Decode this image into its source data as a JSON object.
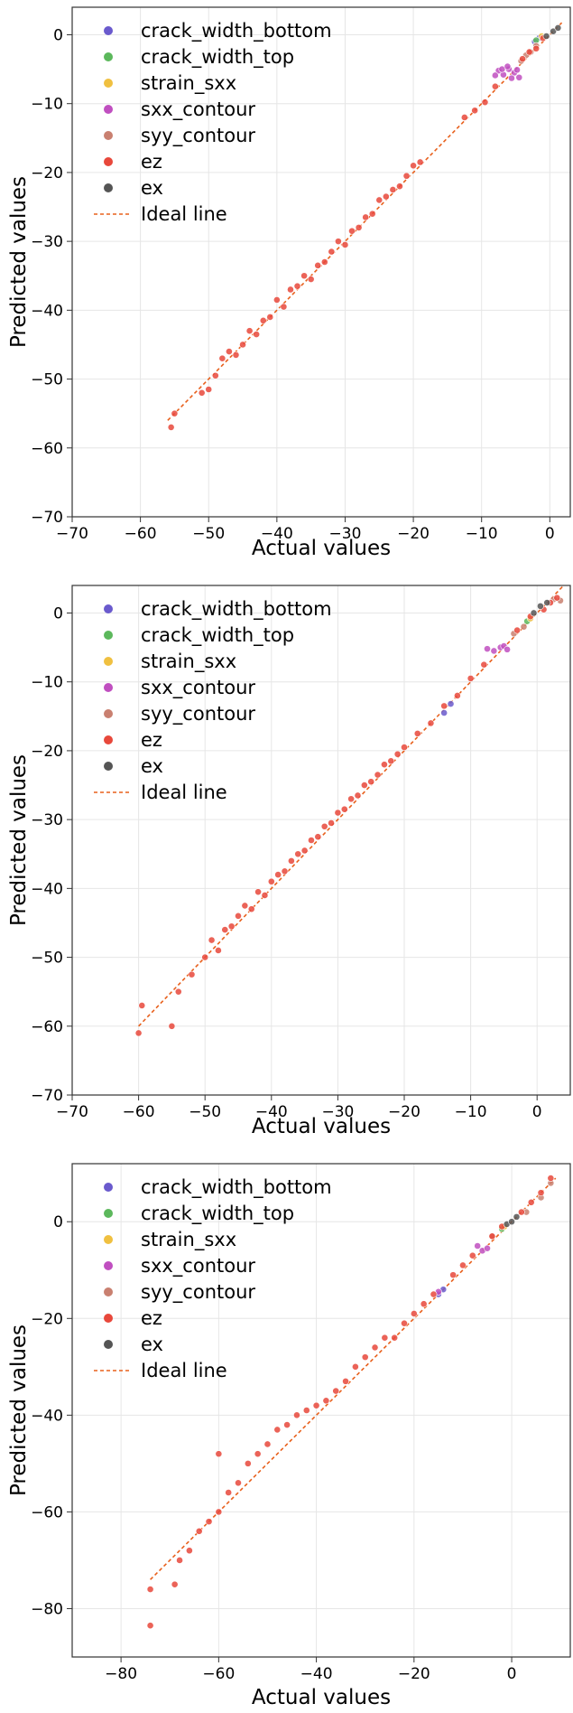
{
  "chart_data": [
    {
      "type": "scatter",
      "xlabel": "Actual values",
      "ylabel": "Predicted values",
      "xlim": [
        -70,
        3
      ],
      "ylim": [
        -70,
        4
      ],
      "xticks": [
        -70,
        -60,
        -50,
        -40,
        -30,
        -20,
        -10,
        0
      ],
      "yticks": [
        -70,
        -60,
        -50,
        -40,
        -30,
        -20,
        -10,
        0
      ],
      "grid": true,
      "legend_position": "upper-left",
      "legend": [
        "crack_width_bottom",
        "crack_width_top",
        "strain_sxx",
        "sxx_contour",
        "syy_contour",
        "ez",
        "ex",
        "Ideal line"
      ],
      "ideal_line": {
        "name": "Ideal line",
        "x": [
          -56,
          2
        ],
        "y": [
          -56,
          2
        ]
      },
      "series": [
        {
          "name": "crack_width_bottom",
          "color": "#6a5acd",
          "points": [
            [
              -1.5,
              -0.4
            ],
            [
              -2.2,
              -1.0
            ]
          ]
        },
        {
          "name": "crack_width_top",
          "color": "#5cb85c",
          "points": [
            [
              -2.0,
              -0.8
            ]
          ]
        },
        {
          "name": "strain_sxx",
          "color": "#f0c040",
          "points": [
            [
              -1.2,
              -0.2
            ]
          ]
        },
        {
          "name": "sxx_contour",
          "color": "#c04fc0",
          "points": [
            [
              -7.5,
              -5.2
            ],
            [
              -6.8,
              -5.8
            ],
            [
              -6.0,
              -5.0
            ],
            [
              -5.2,
              -5.5
            ],
            [
              -4.5,
              -6.2
            ],
            [
              -7.0,
              -5.0
            ],
            [
              -6.2,
              -4.6
            ],
            [
              -5.6,
              -6.3
            ],
            [
              -4.8,
              -5.1
            ],
            [
              -8.0,
              -5.9
            ]
          ]
        },
        {
          "name": "syy_contour",
          "color": "#c98070",
          "points": [
            [
              -3.5,
              -3.0
            ],
            [
              -2.8,
              -2.5
            ],
            [
              -2.0,
              -1.6
            ],
            [
              -4.2,
              -3.8
            ]
          ]
        },
        {
          "name": "ez",
          "color": "#e8483b",
          "points": [
            [
              -55.5,
              -57.0
            ],
            [
              -55.0,
              -55.0
            ],
            [
              -51.0,
              -52.0
            ],
            [
              -50.0,
              -51.5
            ],
            [
              -49.0,
              -49.5
            ],
            [
              -48.0,
              -47.0
            ],
            [
              -47.0,
              -46.0
            ],
            [
              -46.0,
              -46.5
            ],
            [
              -45.0,
              -45.0
            ],
            [
              -44.0,
              -43.0
            ],
            [
              -43.0,
              -43.5
            ],
            [
              -42.0,
              -41.5
            ],
            [
              -41.0,
              -41.0
            ],
            [
              -40.0,
              -38.5
            ],
            [
              -39.0,
              -39.5
            ],
            [
              -38.0,
              -37.0
            ],
            [
              -37.0,
              -36.5
            ],
            [
              -36.0,
              -35.0
            ],
            [
              -35.0,
              -35.5
            ],
            [
              -34.0,
              -33.5
            ],
            [
              -33.0,
              -33.0
            ],
            [
              -32.0,
              -31.5
            ],
            [
              -31.0,
              -30.0
            ],
            [
              -30.0,
              -30.5
            ],
            [
              -29.0,
              -28.5
            ],
            [
              -28.0,
              -28.0
            ],
            [
              -27.0,
              -26.5
            ],
            [
              -26.0,
              -26.0
            ],
            [
              -25.0,
              -24.0
            ],
            [
              -24.0,
              -23.5
            ],
            [
              -23.0,
              -22.5
            ],
            [
              -22.0,
              -22.0
            ],
            [
              -21.0,
              -20.5
            ],
            [
              -20.0,
              -19.0
            ],
            [
              -19.0,
              -18.5
            ],
            [
              -12.5,
              -12.0
            ],
            [
              -11.0,
              -11.0
            ],
            [
              -9.5,
              -9.8
            ],
            [
              -8.0,
              -7.5
            ],
            [
              -4.0,
              -3.5
            ],
            [
              -3.0,
              -2.5
            ],
            [
              -2.0,
              -2.0
            ],
            [
              -1.0,
              -0.5
            ]
          ]
        },
        {
          "name": "ex",
          "color": "#555555",
          "points": [
            [
              -0.5,
              -0.2
            ],
            [
              0.5,
              0.5
            ],
            [
              1.2,
              1.0
            ]
          ]
        }
      ]
    },
    {
      "type": "scatter",
      "xlabel": "Actual values",
      "ylabel": "Predicted values",
      "xlim": [
        -70,
        5
      ],
      "ylim": [
        -70,
        4
      ],
      "xticks": [
        -70,
        -60,
        -50,
        -40,
        -30,
        -20,
        -10,
        0
      ],
      "yticks": [
        -70,
        -60,
        -50,
        -40,
        -30,
        -20,
        -10,
        0
      ],
      "grid": true,
      "legend_position": "upper-left",
      "legend": [
        "crack_width_bottom",
        "crack_width_top",
        "strain_sxx",
        "sxx_contour",
        "syy_contour",
        "ez",
        "ex",
        "Ideal line"
      ],
      "ideal_line": {
        "name": "Ideal line",
        "x": [
          -60,
          4
        ],
        "y": [
          -60,
          4
        ]
      },
      "series": [
        {
          "name": "crack_width_bottom",
          "color": "#6a5acd",
          "points": [
            [
              -14.0,
              -14.5
            ],
            [
              -13.0,
              -13.2
            ]
          ]
        },
        {
          "name": "crack_width_top",
          "color": "#5cb85c",
          "points": [
            [
              -1.5,
              -1.2
            ]
          ]
        },
        {
          "name": "strain_sxx",
          "color": "#f0c040",
          "points": [
            [
              -1.0,
              -0.8
            ]
          ]
        },
        {
          "name": "sxx_contour",
          "color": "#c04fc0",
          "points": [
            [
              -7.5,
              -5.2
            ],
            [
              -6.5,
              -5.5
            ],
            [
              -5.5,
              -5.0
            ],
            [
              -5.0,
              -4.8
            ],
            [
              -4.5,
              -5.3
            ]
          ]
        },
        {
          "name": "syy_contour",
          "color": "#c98070",
          "points": [
            [
              -3.5,
              -3.0
            ],
            [
              -2.0,
              -2.0
            ],
            [
              2.5,
              2.0
            ],
            [
              3.5,
              1.8
            ]
          ]
        },
        {
          "name": "ez",
          "color": "#e8483b",
          "points": [
            [
              -60.0,
              -61.0
            ],
            [
              -59.5,
              -57.0
            ],
            [
              -55.0,
              -60.0
            ],
            [
              -54.0,
              -55.0
            ],
            [
              -52.0,
              -52.5
            ],
            [
              -50.0,
              -50.0
            ],
            [
              -49.0,
              -47.5
            ],
            [
              -48.0,
              -49.0
            ],
            [
              -47.0,
              -46.0
            ],
            [
              -46.0,
              -45.5
            ],
            [
              -45.0,
              -44.0
            ],
            [
              -44.0,
              -42.5
            ],
            [
              -43.0,
              -43.0
            ],
            [
              -42.0,
              -40.5
            ],
            [
              -41.0,
              -41.0
            ],
            [
              -40.0,
              -39.0
            ],
            [
              -39.0,
              -38.0
            ],
            [
              -38.0,
              -37.5
            ],
            [
              -37.0,
              -36.0
            ],
            [
              -36.0,
              -35.0
            ],
            [
              -35.0,
              -34.5
            ],
            [
              -34.0,
              -33.0
            ],
            [
              -33.0,
              -32.5
            ],
            [
              -32.0,
              -31.0
            ],
            [
              -31.0,
              -30.5
            ],
            [
              -30.0,
              -29.0
            ],
            [
              -29.0,
              -28.5
            ],
            [
              -28.0,
              -27.0
            ],
            [
              -27.0,
              -26.5
            ],
            [
              -26.0,
              -25.0
            ],
            [
              -25.0,
              -24.5
            ],
            [
              -24.0,
              -23.5
            ],
            [
              -23.0,
              -22.0
            ],
            [
              -22.0,
              -21.5
            ],
            [
              -21.0,
              -20.5
            ],
            [
              -20.0,
              -19.5
            ],
            [
              -18.0,
              -17.5
            ],
            [
              -16.0,
              -16.0
            ],
            [
              -14.0,
              -13.5
            ],
            [
              -12.0,
              -12.0
            ],
            [
              -10.0,
              -9.5
            ],
            [
              -8.0,
              -7.5
            ],
            [
              -3.0,
              -2.5
            ],
            [
              -1.0,
              -0.5
            ],
            [
              1.0,
              0.5
            ],
            [
              2.0,
              1.5
            ],
            [
              3.0,
              2.2
            ]
          ]
        },
        {
          "name": "ex",
          "color": "#555555",
          "points": [
            [
              -0.5,
              0.0
            ],
            [
              0.5,
              1.0
            ],
            [
              1.5,
              1.5
            ]
          ]
        }
      ]
    },
    {
      "type": "scatter",
      "xlabel": "Actual values",
      "ylabel": "Predicted values",
      "xlim": [
        -90,
        12
      ],
      "ylim": [
        -90,
        12
      ],
      "xticks": [
        -80,
        -60,
        -40,
        -20,
        0
      ],
      "yticks": [
        -80,
        -60,
        -40,
        -20,
        0
      ],
      "grid": true,
      "legend_position": "upper-left",
      "legend": [
        "crack_width_bottom",
        "crack_width_top",
        "strain_sxx",
        "sxx_contour",
        "syy_contour",
        "ez",
        "ex",
        "Ideal line"
      ],
      "ideal_line": {
        "name": "Ideal line",
        "x": [
          -74,
          9
        ],
        "y": [
          -74,
          9
        ]
      },
      "series": [
        {
          "name": "crack_width_bottom",
          "color": "#6a5acd",
          "points": [
            [
              -15.0,
              -15.0
            ],
            [
              -14.0,
              -14.0
            ]
          ]
        },
        {
          "name": "crack_width_top",
          "color": "#5cb85c",
          "points": [
            [
              -2.0,
              -1.5
            ]
          ]
        },
        {
          "name": "strain_sxx",
          "color": "#f0c040",
          "points": [
            [
              -1.5,
              -1.0
            ]
          ]
        },
        {
          "name": "sxx_contour",
          "color": "#c04fc0",
          "points": [
            [
              -7.0,
              -5.0
            ],
            [
              -6.0,
              -6.0
            ],
            [
              -5.0,
              -5.5
            ],
            [
              -15.0,
              -14.5
            ]
          ]
        },
        {
          "name": "syy_contour",
          "color": "#c98070",
          "points": [
            [
              -4.0,
              -3.0
            ],
            [
              3.0,
              2.0
            ],
            [
              6.0,
              5.0
            ],
            [
              8.0,
              8.0
            ]
          ]
        },
        {
          "name": "ez",
          "color": "#e8483b",
          "points": [
            [
              -74.0,
              -83.5
            ],
            [
              -74.0,
              -76.0
            ],
            [
              -69.0,
              -75.0
            ],
            [
              -68.0,
              -70.0
            ],
            [
              -66.0,
              -68.0
            ],
            [
              -64.0,
              -64.0
            ],
            [
              -62.0,
              -62.0
            ],
            [
              -60.0,
              -48.0
            ],
            [
              -60.0,
              -60.0
            ],
            [
              -58.0,
              -56.0
            ],
            [
              -56.0,
              -54.0
            ],
            [
              -54.0,
              -50.0
            ],
            [
              -52.0,
              -48.0
            ],
            [
              -50.0,
              -46.0
            ],
            [
              -48.0,
              -43.0
            ],
            [
              -46.0,
              -42.0
            ],
            [
              -44.0,
              -40.0
            ],
            [
              -42.0,
              -39.0
            ],
            [
              -40.0,
              -38.0
            ],
            [
              -38.0,
              -37.0
            ],
            [
              -36.0,
              -35.0
            ],
            [
              -34.0,
              -33.0
            ],
            [
              -32.0,
              -30.0
            ],
            [
              -30.0,
              -28.0
            ],
            [
              -28.0,
              -26.0
            ],
            [
              -26.0,
              -24.0
            ],
            [
              -24.0,
              -24.0
            ],
            [
              -22.0,
              -21.0
            ],
            [
              -20.0,
              -19.0
            ],
            [
              -18.0,
              -17.0
            ],
            [
              -16.0,
              -15.0
            ],
            [
              -12.0,
              -11.0
            ],
            [
              -10.0,
              -9.0
            ],
            [
              -8.0,
              -7.0
            ],
            [
              -4.0,
              -3.0
            ],
            [
              -2.0,
              -1.0
            ],
            [
              2.0,
              2.0
            ],
            [
              4.0,
              4.0
            ],
            [
              6.0,
              6.0
            ],
            [
              8.0,
              9.0
            ]
          ]
        },
        {
          "name": "ex",
          "color": "#555555",
          "points": [
            [
              -1.0,
              -0.5
            ],
            [
              0.0,
              0.0
            ],
            [
              1.0,
              1.0
            ]
          ]
        }
      ]
    }
  ]
}
